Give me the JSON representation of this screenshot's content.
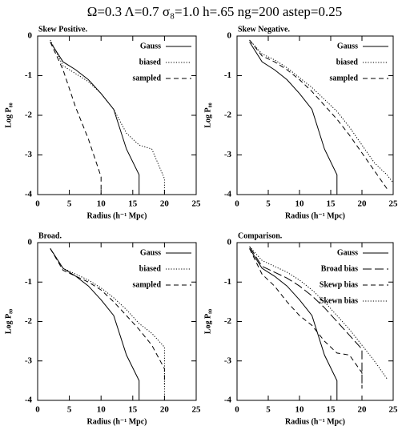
{
  "title": "Ω=0.3 Λ=0.7 σ₈=1.0 h=.65 ng=200 astep=0.25",
  "chart_data": [
    {
      "type": "line",
      "title": "Skew Positive.",
      "xlabel": "Radius (h⁻¹ Mpc)",
      "ylabel": "Log P₈₀",
      "xlim": [
        0,
        25
      ],
      "ylim": [
        -4,
        0
      ],
      "xticks": [
        0,
        5,
        10,
        15,
        20,
        25
      ],
      "yticks": [
        0,
        -1,
        -2,
        -3,
        -4
      ],
      "legend": "upper right",
      "series": [
        {
          "name": "Gauss",
          "color": "#000000",
          "dash": "solid",
          "x": [
            2,
            4,
            6,
            8,
            10,
            12,
            14,
            16,
            16
          ],
          "values": [
            -0.15,
            -0.65,
            -0.85,
            -1.1,
            -1.45,
            -1.85,
            -2.85,
            -3.5,
            -4
          ]
        },
        {
          "name": "biased",
          "color": "#000000",
          "dash": "dotted",
          "x": [
            2,
            4,
            6,
            8,
            10,
            12,
            14,
            16,
            18,
            20,
            20
          ],
          "values": [
            -0.1,
            -0.75,
            -0.95,
            -1.15,
            -1.45,
            -1.85,
            -2.45,
            -2.75,
            -2.85,
            -3.6,
            -4
          ]
        },
        {
          "name": "sampled",
          "color": "#000000",
          "dash": "dashed",
          "x": [
            2,
            4,
            6,
            8,
            10,
            10
          ],
          "values": [
            -0.15,
            -0.85,
            -1.8,
            -2.6,
            -3.55,
            -4
          ]
        }
      ]
    },
    {
      "type": "line",
      "title": "Skew Negative.",
      "xlabel": "Radius (h⁻¹ Mpc)",
      "ylabel": "Log P₈₀",
      "xlim": [
        0,
        25
      ],
      "ylim": [
        -4,
        0
      ],
      "xticks": [
        0,
        5,
        10,
        15,
        20,
        25
      ],
      "yticks": [
        0,
        -1,
        -2,
        -3,
        -4
      ],
      "legend": "upper right",
      "series": [
        {
          "name": "Gauss",
          "color": "#000000",
          "dash": "solid",
          "x": [
            2,
            4,
            6,
            8,
            10,
            12,
            14,
            16,
            16
          ],
          "values": [
            -0.15,
            -0.65,
            -0.85,
            -1.1,
            -1.45,
            -1.85,
            -2.85,
            -3.5,
            -4
          ]
        },
        {
          "name": "biased",
          "color": "#000000",
          "dash": "dotted",
          "x": [
            2,
            4,
            6,
            8,
            10,
            12,
            14,
            16,
            18,
            20,
            22,
            24,
            25
          ],
          "values": [
            -0.1,
            -0.45,
            -0.6,
            -0.8,
            -1.05,
            -1.3,
            -1.6,
            -1.9,
            -2.3,
            -2.75,
            -3.2,
            -3.5,
            -3.7
          ]
        },
        {
          "name": "sampled",
          "color": "#000000",
          "dash": "dashed",
          "x": [
            2,
            4,
            6,
            8,
            10,
            12,
            14,
            16,
            18,
            20,
            22,
            24
          ],
          "values": [
            -0.1,
            -0.5,
            -0.65,
            -0.85,
            -1.1,
            -1.4,
            -1.75,
            -2.1,
            -2.5,
            -2.95,
            -3.4,
            -3.85
          ]
        }
      ]
    },
    {
      "type": "line",
      "title": "Broad.",
      "xlabel": "Radius (h⁻¹ Mpc)",
      "ylabel": "Log P₈₀",
      "xlim": [
        0,
        25
      ],
      "ylim": [
        -4,
        0
      ],
      "xticks": [
        0,
        5,
        10,
        15,
        20,
        25
      ],
      "yticks": [
        0,
        -1,
        -2,
        -3,
        -4
      ],
      "legend": "upper right",
      "series": [
        {
          "name": "Gauss",
          "color": "#000000",
          "dash": "solid",
          "x": [
            2,
            4,
            6,
            8,
            10,
            12,
            14,
            16,
            16
          ],
          "values": [
            -0.15,
            -0.65,
            -0.85,
            -1.1,
            -1.45,
            -1.85,
            -2.85,
            -3.5,
            -4
          ]
        },
        {
          "name": "biased",
          "color": "#000000",
          "dash": "dotted",
          "x": [
            2,
            4,
            6,
            8,
            10,
            12,
            14,
            16,
            18,
            20,
            20
          ],
          "values": [
            -0.15,
            -0.65,
            -0.8,
            -0.95,
            -1.15,
            -1.4,
            -1.7,
            -2.05,
            -2.3,
            -2.65,
            -4
          ]
        },
        {
          "name": "sampled",
          "color": "#000000",
          "dash": "dashed",
          "x": [
            2,
            4,
            6,
            8,
            10,
            12,
            14,
            16,
            18,
            20,
            20
          ],
          "values": [
            -0.15,
            -0.7,
            -0.85,
            -1.0,
            -1.2,
            -1.5,
            -1.85,
            -2.2,
            -2.6,
            -3.2,
            -3.6
          ]
        }
      ]
    },
    {
      "type": "line",
      "title": "Comparison.",
      "xlabel": "Radius (h⁻¹ Mpc)",
      "ylabel": "Log P₈₀",
      "xlim": [
        0,
        25
      ],
      "ylim": [
        -4,
        0
      ],
      "xticks": [
        0,
        5,
        10,
        15,
        20,
        25
      ],
      "yticks": [
        0,
        -1,
        -2,
        -3,
        -4
      ],
      "legend": "upper right",
      "series": [
        {
          "name": "Gauss",
          "color": "#000000",
          "dash": "solid",
          "x": [
            2,
            4,
            6,
            8,
            10,
            12,
            14,
            16,
            16
          ],
          "values": [
            -0.15,
            -0.65,
            -0.85,
            -1.1,
            -1.45,
            -1.85,
            -2.85,
            -3.5,
            -4
          ]
        },
        {
          "name": "Broad bias",
          "color": "#000000",
          "dash": "longdash",
          "x": [
            2,
            4,
            6,
            8,
            10,
            12,
            14,
            16,
            18,
            20,
            20
          ],
          "values": [
            -0.1,
            -0.6,
            -0.75,
            -0.9,
            -1.1,
            -1.35,
            -1.65,
            -2.0,
            -2.35,
            -2.7,
            -3.7
          ]
        },
        {
          "name": "Skewp bias",
          "color": "#000000",
          "dash": "dashed",
          "x": [
            2,
            4,
            6,
            8,
            10,
            12,
            14,
            16,
            18,
            20,
            20
          ],
          "values": [
            -0.15,
            -0.8,
            -1.1,
            -1.5,
            -1.85,
            -2.1,
            -2.5,
            -2.8,
            -2.85,
            -3.3,
            -3.7
          ]
        },
        {
          "name": "Skewn bias",
          "color": "#000000",
          "dash": "dotted",
          "x": [
            2,
            4,
            6,
            8,
            10,
            12,
            14,
            16,
            18,
            20,
            22,
            24
          ],
          "values": [
            -0.1,
            -0.45,
            -0.6,
            -0.75,
            -0.95,
            -1.2,
            -1.5,
            -1.85,
            -2.2,
            -2.6,
            -3.0,
            -3.45
          ]
        }
      ]
    }
  ]
}
